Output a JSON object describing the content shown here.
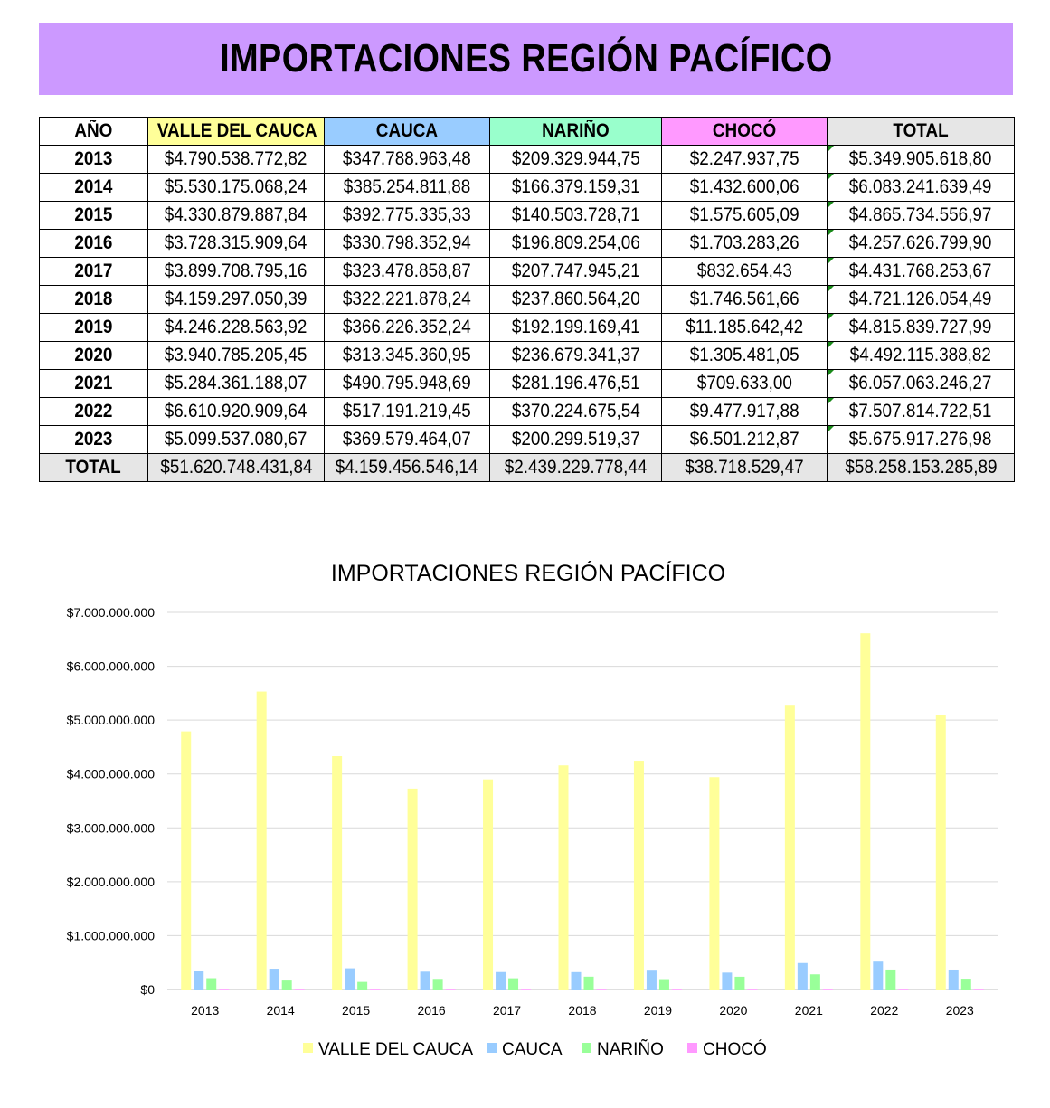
{
  "title": "IMPORTACIONES REGIÓN PACÍFICO",
  "colors": {
    "banner": "#cc99ff",
    "valle": "#ffff99",
    "cauca": "#99ccff",
    "narino": "#99ffcc",
    "choco": "#ff99ff",
    "total_header": "#e6e6e6",
    "bar_valle": "#ffff99",
    "bar_cauca": "#99ccff",
    "bar_narino": "#99ff99",
    "bar_choco": "#ff99ff"
  },
  "table": {
    "headers": [
      "AÑO",
      "VALLE DEL CAUCA",
      "CAUCA",
      "NARIÑO",
      "CHOCÓ",
      "TOTAL"
    ],
    "rows": [
      [
        "2013",
        "$4.790.538.772,82",
        "$347.788.963,48",
        "$209.329.944,75",
        "$2.247.937,75",
        "$5.349.905.618,80"
      ],
      [
        "2014",
        "$5.530.175.068,24",
        "$385.254.811,88",
        "$166.379.159,31",
        "$1.432.600,06",
        "$6.083.241.639,49"
      ],
      [
        "2015",
        "$4.330.879.887,84",
        "$392.775.335,33",
        "$140.503.728,71",
        "$1.575.605,09",
        "$4.865.734.556,97"
      ],
      [
        "2016",
        "$3.728.315.909,64",
        "$330.798.352,94",
        "$196.809.254,06",
        "$1.703.283,26",
        "$4.257.626.799,90"
      ],
      [
        "2017",
        "$3.899.708.795,16",
        "$323.478.858,87",
        "$207.747.945,21",
        "$832.654,43",
        "$4.431.768.253,67"
      ],
      [
        "2018",
        "$4.159.297.050,39",
        "$322.221.878,24",
        "$237.860.564,20",
        "$1.746.561,66",
        "$4.721.126.054,49"
      ],
      [
        "2019",
        "$4.246.228.563,92",
        "$366.226.352,24",
        "$192.199.169,41",
        "$11.185.642,42",
        "$4.815.839.727,99"
      ],
      [
        "2020",
        "$3.940.785.205,45",
        "$313.345.360,95",
        "$236.679.341,37",
        "$1.305.481,05",
        "$4.492.115.388,82"
      ],
      [
        "2021",
        "$5.284.361.188,07",
        "$490.795.948,69",
        "$281.196.476,51",
        "$709.633,00",
        "$6.057.063.246,27"
      ],
      [
        "2022",
        "$6.610.920.909,64",
        "$517.191.219,45",
        "$370.224.675,54",
        "$9.477.917,88",
        "$7.507.814.722,51"
      ],
      [
        "2023",
        "$5.099.537.080,67",
        "$369.579.464,07",
        "$200.299.519,37",
        "$6.501.212,87",
        "$5.675.917.276,98"
      ]
    ],
    "total_row": [
      "TOTAL",
      "$51.620.748.431,84",
      "$4.159.456.546,14",
      "$2.439.229.778,44",
      "$38.718.529,47",
      "$58.258.153.285,89"
    ]
  },
  "chart_data": {
    "type": "bar",
    "title": "IMPORTACIONES REGIÓN PACÍFICO",
    "categories": [
      "2013",
      "2014",
      "2015",
      "2016",
      "2017",
      "2018",
      "2019",
      "2020",
      "2021",
      "2022",
      "2023"
    ],
    "series": [
      {
        "name": "VALLE DEL CAUCA",
        "color": "#ffff99",
        "values": [
          4790538772.82,
          5530175068.24,
          4330879887.84,
          3728315909.64,
          3899708795.16,
          4159297050.39,
          4246228563.92,
          3940785205.45,
          5284361188.07,
          6610920909.64,
          5099537080.67
        ]
      },
      {
        "name": "CAUCA",
        "color": "#99ccff",
        "values": [
          347788963.48,
          385254811.88,
          392775335.33,
          330798352.94,
          323478858.87,
          322221878.24,
          366226352.24,
          313345360.95,
          490795948.69,
          517191219.45,
          369579464.07
        ]
      },
      {
        "name": "NARIÑO",
        "color": "#99ff99",
        "values": [
          209329944.75,
          166379159.31,
          140503728.71,
          196809254.06,
          207747945.21,
          237860564.2,
          192199169.41,
          236679341.37,
          281196476.51,
          370224675.54,
          200299519.37
        ]
      },
      {
        "name": "CHOCÓ",
        "color": "#ff99ff",
        "values": [
          2247937.75,
          1432600.06,
          1575605.09,
          1703283.26,
          832654.43,
          1746561.66,
          11185642.42,
          1305481.05,
          709633.0,
          9477917.88,
          6501212.87
        ]
      }
    ],
    "yticks": [
      "$0",
      "$1.000.000.000",
      "$2.000.000.000",
      "$3.000.000.000",
      "$4.000.000.000",
      "$5.000.000.000",
      "$6.000.000.000",
      "$7.000.000.000"
    ],
    "ylim": [
      0,
      7000000000
    ],
    "grid": true,
    "legend": "bottom"
  }
}
